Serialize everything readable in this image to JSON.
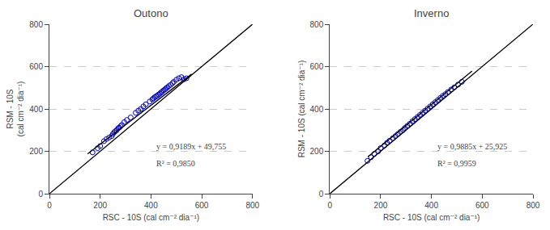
{
  "chart_data": [
    {
      "type": "scatter",
      "title": "Outono",
      "xlabel": "RSC - 10S (cal cm⁻² dia⁻¹)",
      "ylabel": "RSM - 10S\n(cal cm⁻² dia⁻¹)",
      "annotations": [
        "y = 0,9189x + 49,755",
        "R² = 0,9850"
      ],
      "series": [
        {
          "type": "scatter",
          "marker": "circle-open",
          "color": "#0000cc",
          "x": [
            170,
            190,
            200,
            215,
            225,
            235,
            245,
            250,
            255,
            260,
            265,
            270,
            275,
            280,
            285,
            295,
            305,
            320,
            340,
            350,
            360,
            370,
            380,
            395,
            405,
            410,
            415,
            420,
            425,
            430,
            435,
            440,
            445,
            450,
            455,
            460,
            465,
            470,
            478,
            485,
            490,
            500,
            510,
            520,
            530,
            540
          ],
          "values": [
            195,
            215,
            225,
            248,
            258,
            265,
            272,
            282,
            290,
            295,
            300,
            308,
            312,
            318,
            325,
            338,
            348,
            360,
            382,
            392,
            400,
            412,
            422,
            435,
            445,
            450,
            455,
            460,
            462,
            468,
            472,
            478,
            482,
            488,
            492,
            498,
            502,
            508,
            514,
            522,
            528,
            538,
            545,
            550,
            540,
            545
          ]
        },
        {
          "type": "line",
          "line_style": "solid",
          "color": "#000000",
          "x": [
            0,
            800
          ],
          "values": [
            0,
            800
          ]
        },
        {
          "type": "line",
          "line_style": "solid",
          "color": "#000000",
          "x": [
            150,
            560
          ],
          "values": [
            187.59,
            564.339
          ]
        }
      ],
      "xlim": [
        0,
        800
      ],
      "ylim": [
        0,
        800
      ],
      "xticks": [
        0,
        200,
        400,
        600,
        800
      ],
      "yticks": [
        0,
        200,
        400,
        600,
        800
      ],
      "grid": "y"
    },
    {
      "type": "scatter",
      "title": "Inverno",
      "xlabel": "RSC - 10S (cal cm⁻² dia⁻¹)",
      "ylabel": "RSM - 10S (cal cm⁻² dia⁻¹)",
      "annotations": [
        "y = 0,9885x + 25,925",
        "R² = 0,9959"
      ],
      "series": [
        {
          "type": "scatter",
          "marker": "circle-open",
          "color": "#0000cc",
          "x": [
            148,
            162,
            175,
            190,
            200,
            215,
            225,
            235,
            248,
            258,
            268,
            278,
            288,
            295,
            305,
            315,
            325,
            335,
            345,
            355,
            365,
            375,
            385,
            395,
            405,
            415,
            425,
            435,
            445,
            455,
            465,
            478,
            490,
            505,
            520
          ],
          "values": [
            155,
            172,
            188,
            200,
            215,
            228,
            240,
            250,
            262,
            272,
            282,
            292,
            300,
            310,
            320,
            330,
            342,
            352,
            362,
            372,
            382,
            392,
            402,
            412,
            422,
            432,
            442,
            452,
            462,
            470,
            480,
            492,
            502,
            515,
            528
          ]
        },
        {
          "type": "line",
          "line_style": "solid",
          "color": "#000000",
          "x": [
            0,
            800
          ],
          "values": [
            0,
            800
          ]
        },
        {
          "type": "line",
          "line_style": "solid",
          "color": "#000000",
          "x": [
            150,
            560
          ],
          "values": [
            174.2,
            579.485
          ]
        }
      ],
      "xlim": [
        0,
        800
      ],
      "ylim": [
        0,
        800
      ],
      "xticks": [
        0,
        200,
        400,
        600,
        800
      ],
      "yticks": [
        0,
        200,
        400,
        600,
        800
      ],
      "grid": "y"
    }
  ]
}
